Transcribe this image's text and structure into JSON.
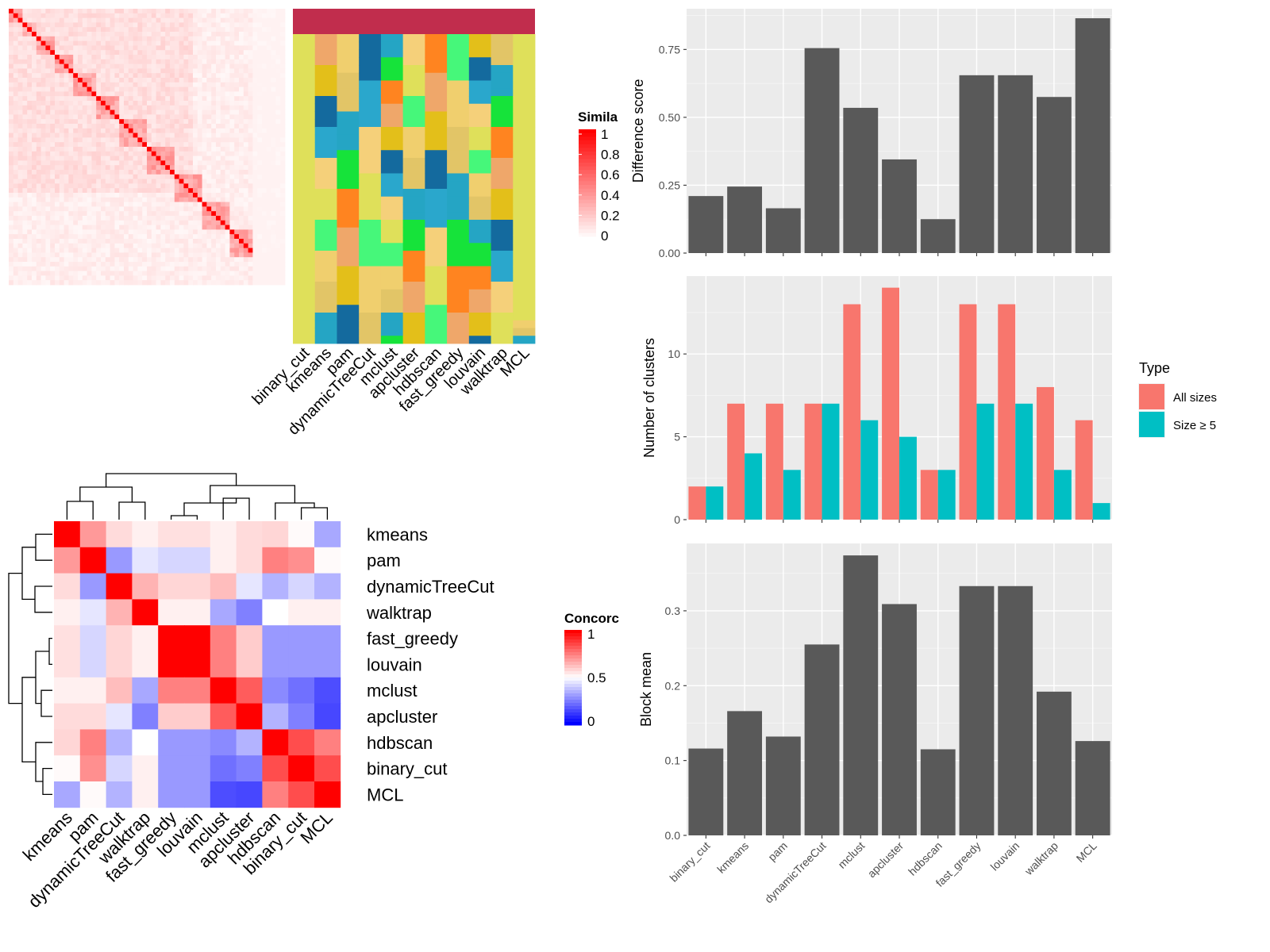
{
  "chart_data": [
    {
      "type": "heatmap",
      "panel": "similarity",
      "legend": {
        "title": "Simila",
        "ticks": [
          "1",
          "0.8",
          "0.6",
          "0.4",
          "0.2",
          "0"
        ]
      },
      "column_labels": [
        "binary_cut",
        "kmeans",
        "pam",
        "dynamicTreeCut",
        "mclust",
        "apcluster",
        "hdbscan",
        "fast_greedy",
        "louvain",
        "walktrap",
        "MCL"
      ]
    },
    {
      "type": "heatmap",
      "panel": "concordance",
      "legend": {
        "title": "Concorc",
        "ticks": [
          "1",
          "0.5",
          "0"
        ]
      },
      "labels": [
        "kmeans",
        "pam",
        "dynamicTreeCut",
        "walktrap",
        "fast_greedy",
        "louvain",
        "mclust",
        "apcluster",
        "hdbscan",
        "binary_cut",
        "MCL"
      ],
      "matrix": [
        [
          1.0,
          0.7,
          0.57,
          0.53,
          0.56,
          0.56,
          0.53,
          0.57,
          0.58,
          0.51,
          0.33
        ],
        [
          0.7,
          1.0,
          0.3,
          0.45,
          0.42,
          0.42,
          0.53,
          0.57,
          0.75,
          0.72,
          0.51
        ],
        [
          0.57,
          0.3,
          1.0,
          0.65,
          0.58,
          0.58,
          0.63,
          0.45,
          0.35,
          0.42,
          0.35
        ],
        [
          0.53,
          0.45,
          0.65,
          1.0,
          0.53,
          0.53,
          0.33,
          0.25,
          0.5,
          0.53,
          0.53
        ],
        [
          0.56,
          0.42,
          0.58,
          0.53,
          1.0,
          1.0,
          0.75,
          0.6,
          0.3,
          0.3,
          0.3
        ],
        [
          0.56,
          0.42,
          0.58,
          0.53,
          1.0,
          1.0,
          0.75,
          0.6,
          0.3,
          0.3,
          0.3
        ],
        [
          0.53,
          0.53,
          0.63,
          0.33,
          0.75,
          0.75,
          1.0,
          0.82,
          0.27,
          0.22,
          0.15
        ],
        [
          0.57,
          0.57,
          0.45,
          0.25,
          0.6,
          0.6,
          0.82,
          1.0,
          0.35,
          0.25,
          0.14
        ],
        [
          0.58,
          0.75,
          0.35,
          0.5,
          0.3,
          0.3,
          0.27,
          0.35,
          1.0,
          0.85,
          0.75
        ],
        [
          0.51,
          0.72,
          0.42,
          0.53,
          0.3,
          0.3,
          0.22,
          0.25,
          0.85,
          1.0,
          0.85
        ],
        [
          0.33,
          0.51,
          0.35,
          0.53,
          0.3,
          0.3,
          0.15,
          0.14,
          0.75,
          0.85,
          1.0
        ]
      ]
    },
    {
      "type": "bar",
      "panel": "difference",
      "categories": [
        "binary_cut",
        "kmeans",
        "pam",
        "dynamicTreeCut",
        "mclust",
        "apcluster",
        "hdbscan",
        "fast_greedy",
        "louvain",
        "walktrap",
        "MCL"
      ],
      "values": [
        0.21,
        0.245,
        0.165,
        0.755,
        0.535,
        0.345,
        0.125,
        0.655,
        0.655,
        0.575,
        0.865
      ],
      "ylabel": "Difference score",
      "ylim": [
        0,
        0.9
      ],
      "yticks": [
        "0.00",
        "0.25",
        "0.50",
        "0.75"
      ]
    },
    {
      "type": "bar",
      "panel": "clusters",
      "categories": [
        "binary_cut",
        "kmeans",
        "pam",
        "dynamicTreeCut",
        "mclust",
        "apcluster",
        "hdbscan",
        "fast_greedy",
        "louvain",
        "walktrap",
        "MCL"
      ],
      "series": [
        {
          "name": "All sizes",
          "color": "#F8766D",
          "values": [
            2,
            7,
            7,
            7,
            13,
            14,
            3,
            13,
            13,
            8,
            6
          ]
        },
        {
          "name": "Size ≥ 5",
          "color": "#00BFC4",
          "values": [
            2,
            4,
            3,
            7,
            6,
            5,
            3,
            7,
            7,
            3,
            1
          ]
        }
      ],
      "ylabel": "Number of clusters",
      "ylim": [
        0,
        14.7
      ],
      "yticks": [
        "0",
        "5",
        "10"
      ],
      "legend": {
        "title": "Type",
        "placement": "right"
      }
    },
    {
      "type": "bar",
      "panel": "blockmean",
      "categories": [
        "binary_cut",
        "kmeans",
        "pam",
        "dynamicTreeCut",
        "mclust",
        "apcluster",
        "hdbscan",
        "fast_greedy",
        "louvain",
        "walktrap",
        "MCL"
      ],
      "values": [
        0.116,
        0.166,
        0.132,
        0.255,
        0.374,
        0.309,
        0.115,
        0.333,
        0.333,
        0.192,
        0.126
      ],
      "ylabel": "Block mean",
      "ylim": [
        0,
        0.39
      ],
      "yticks": [
        "0.0",
        "0.1",
        "0.2",
        "0.3"
      ]
    }
  ]
}
